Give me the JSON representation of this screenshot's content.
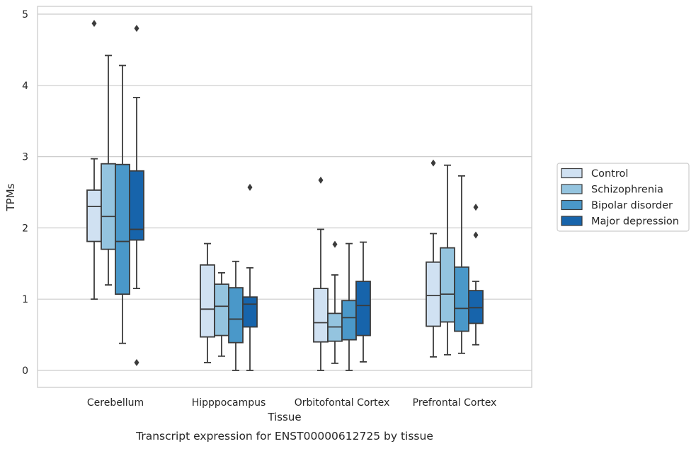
{
  "chart_data": {
    "type": "box",
    "title": "Transcript expression for ENST00000612725 by tissue",
    "xlabel": "Tissue",
    "ylabel": "TPMs",
    "ylim": [
      -0.23,
      5.12
    ],
    "yticks": [
      0,
      1,
      2,
      3,
      4,
      5
    ],
    "grid": "horizontal",
    "legend_position": "right",
    "categories": [
      "Cerebellum",
      "Hipppocampus",
      "Orbitofontal Cortex",
      "Prefrontal Cortex"
    ],
    "series": [
      {
        "name": "Control",
        "color": "#d0e1f2",
        "boxes": [
          {
            "whislo": 1.0,
            "q1": 1.81,
            "med": 2.3,
            "q3": 2.53,
            "whishi": 2.97,
            "fliers": [
              4.87
            ]
          },
          {
            "whislo": 0.11,
            "q1": 0.47,
            "med": 0.86,
            "q3": 1.48,
            "whishi": 1.78,
            "fliers": []
          },
          {
            "whislo": 0.0,
            "q1": 0.4,
            "med": 0.67,
            "q3": 1.15,
            "whishi": 1.98,
            "fliers": [
              2.67
            ]
          },
          {
            "whislo": 0.19,
            "q1": 0.62,
            "med": 1.05,
            "q3": 1.52,
            "whishi": 1.92,
            "fliers": [
              2.91
            ]
          }
        ]
      },
      {
        "name": "Schizophrenia",
        "color": "#94c4df",
        "boxes": [
          {
            "whislo": 1.2,
            "q1": 1.7,
            "med": 2.16,
            "q3": 2.9,
            "whishi": 4.42,
            "fliers": []
          },
          {
            "whislo": 0.2,
            "q1": 0.49,
            "med": 0.9,
            "q3": 1.21,
            "whishi": 1.37,
            "fliers": []
          },
          {
            "whislo": 0.1,
            "q1": 0.41,
            "med": 0.61,
            "q3": 0.8,
            "whishi": 1.34,
            "fliers": [
              1.77
            ]
          },
          {
            "whislo": 0.22,
            "q1": 0.68,
            "med": 1.07,
            "q3": 1.72,
            "whishi": 2.88,
            "fliers": []
          }
        ]
      },
      {
        "name": "Bipolar disorder",
        "color": "#4a98c9",
        "boxes": [
          {
            "whislo": 0.38,
            "q1": 1.07,
            "med": 1.81,
            "q3": 2.89,
            "whishi": 4.28,
            "fliers": []
          },
          {
            "whislo": 0.0,
            "q1": 0.39,
            "med": 0.72,
            "q3": 1.16,
            "whishi": 1.53,
            "fliers": []
          },
          {
            "whislo": 0.0,
            "q1": 0.43,
            "med": 0.74,
            "q3": 0.98,
            "whishi": 1.78,
            "fliers": []
          },
          {
            "whislo": 0.24,
            "q1": 0.55,
            "med": 0.87,
            "q3": 1.45,
            "whishi": 2.73,
            "fliers": []
          }
        ]
      },
      {
        "name": "Major depression",
        "color": "#1764ab",
        "boxes": [
          {
            "whislo": 1.15,
            "q1": 1.83,
            "med": 1.98,
            "q3": 2.8,
            "whishi": 3.83,
            "fliers": [
              4.8,
              0.11
            ]
          },
          {
            "whislo": 0.0,
            "q1": 0.61,
            "med": 0.93,
            "q3": 1.03,
            "whishi": 1.44,
            "fliers": [
              2.57
            ]
          },
          {
            "whislo": 0.12,
            "q1": 0.49,
            "med": 0.91,
            "q3": 1.25,
            "whishi": 1.8,
            "fliers": []
          },
          {
            "whislo": 0.36,
            "q1": 0.66,
            "med": 0.88,
            "q3": 1.12,
            "whishi": 1.25,
            "fliers": [
              2.29,
              1.9
            ]
          }
        ]
      }
    ]
  }
}
